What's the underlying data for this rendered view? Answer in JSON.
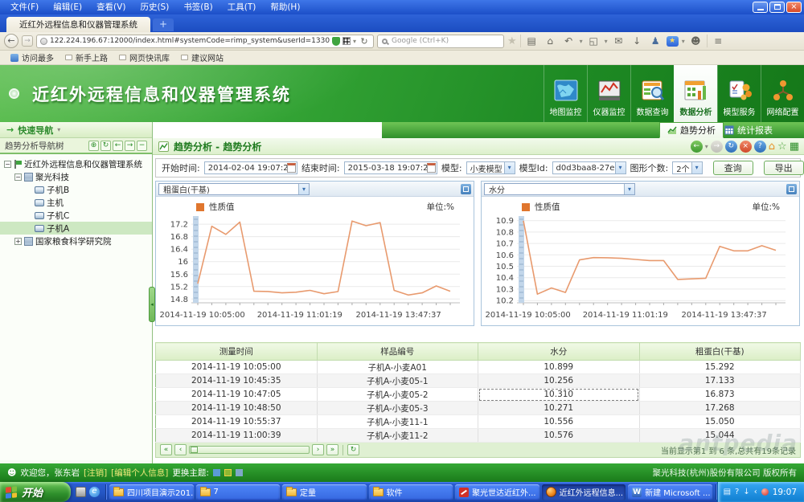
{
  "window": {
    "menus": [
      "文件(F)",
      "编辑(E)",
      "查看(V)",
      "历史(S)",
      "书签(B)",
      "工具(T)",
      "帮助(H)"
    ],
    "tab_title": "近红外远程信息和仪器管理系统",
    "new_tab_label": "+",
    "url": "122.224.196.67:12000/index.html#systemCode=rimp_system&userId=1330fed0c8b84f569a5a102caea73af0#",
    "search_placeholder": "Google (Ctrl+K)",
    "bookmarks": [
      "访问最多",
      "新手上路",
      "网页快讯库",
      "建议网站"
    ]
  },
  "header": {
    "title": "近红外远程信息和仪器管理系统",
    "modules": [
      {
        "label": "地图监控",
        "icon": "map",
        "active": false
      },
      {
        "label": "仪器监控",
        "icon": "instrument",
        "active": false
      },
      {
        "label": "数据查询",
        "icon": "query",
        "active": false
      },
      {
        "label": "数据分析",
        "icon": "analysis",
        "active": true
      },
      {
        "label": "模型服务",
        "icon": "model",
        "active": false
      },
      {
        "label": "网络配置",
        "icon": "network",
        "active": false
      }
    ],
    "subtabs": [
      {
        "label": "趋势分析",
        "active": true
      },
      {
        "label": "统计报表",
        "active": false
      }
    ]
  },
  "sidebar": {
    "quick_nav_label": "快速导航",
    "panel_title": "趋势分析导航树",
    "tree": [
      {
        "label": "近红外远程信息和仪器管理系统",
        "level": 0,
        "icon": "flag",
        "expander": "minus",
        "selected": false
      },
      {
        "label": "聚光科技",
        "level": 1,
        "icon": "org",
        "expander": "minus",
        "selected": false
      },
      {
        "label": "子机B",
        "level": 2,
        "icon": "device",
        "expander": "",
        "selected": false
      },
      {
        "label": "主机",
        "level": 2,
        "icon": "device",
        "expander": "",
        "selected": false
      },
      {
        "label": "子机C",
        "level": 2,
        "icon": "device",
        "expander": "",
        "selected": false
      },
      {
        "label": "子机A",
        "level": 2,
        "icon": "device",
        "expander": "",
        "selected": true
      },
      {
        "label": "国家粮食科学研究院",
        "level": 1,
        "icon": "org",
        "expander": "plus",
        "selected": false
      }
    ]
  },
  "main": {
    "breadcrumb": "趋势分析 - 趋势分析",
    "form": {
      "start_label": "开始时间:",
      "start_value": "2014-02-04 19:07:21",
      "end_label": "结束时间:",
      "end_value": "2015-03-18 19:07:21",
      "model_label": "模型:",
      "model_value": "小麦模型",
      "model_id_label": "模型Id:",
      "model_id_value": "d0d3baa8-27e",
      "count_label": "图形个数:",
      "count_value": "2个",
      "query_label": "查询",
      "export_label": "导出"
    },
    "pagination_info": "当前显示第1 到 6 条,总共有19条记录",
    "watermark": "antpedia"
  },
  "chart_data": [
    {
      "type": "line",
      "title": "粗蛋白(干基)",
      "legend": "性质值",
      "unit_label": "单位:%",
      "series_color": "#E89A6E",
      "x_tick_labels": [
        "2014-11-19 10:05:00",
        "2014-11-19 11:01:19",
        "2014-11-19 13:47:37"
      ],
      "y_ticks": [
        14.8,
        15.2,
        15.6,
        16,
        16.4,
        16.8,
        17.2
      ],
      "ylim": [
        14.68,
        17.46
      ],
      "values": [
        15.292,
        17.133,
        16.873,
        17.268,
        15.05,
        15.044,
        15.0,
        15.02,
        15.08,
        14.97,
        15.04,
        17.3,
        17.15,
        17.25,
        15.08,
        14.93,
        15.0,
        15.22,
        15.05
      ]
    },
    {
      "type": "line",
      "title": "水分",
      "legend": "性质值",
      "unit_label": "单位:%",
      "series_color": "#E89A6E",
      "x_tick_labels": [
        "2014-11-19 10:05:00",
        "2014-11-19 11:01:19",
        "2014-11-19 13:47:37"
      ],
      "y_ticks": [
        10.2,
        10.3,
        10.4,
        10.5,
        10.6,
        10.7,
        10.8,
        10.9
      ],
      "ylim": [
        10.18,
        10.94
      ],
      "values": [
        10.899,
        10.256,
        10.31,
        10.271,
        10.556,
        10.576,
        10.575,
        10.57,
        10.56,
        10.55,
        10.55,
        10.385,
        10.39,
        10.395,
        10.675,
        10.635,
        10.635,
        10.68,
        10.64
      ]
    }
  ],
  "table": {
    "headers": [
      "测量时间",
      "样品编号",
      "水分",
      "粗蛋白(干基)"
    ],
    "rows": [
      [
        "2014-11-19 10:05:00",
        "子机A-小麦A01",
        "10.899",
        "15.292"
      ],
      [
        "2014-11-19 10:45:35",
        "子机A-小麦05-1",
        "10.256",
        "17.133"
      ],
      [
        "2014-11-19 10:47:05",
        "子机A-小麦05-2",
        "10.310",
        "16.873"
      ],
      [
        "2014-11-19 10:48:50",
        "子机A-小麦05-3",
        "10.271",
        "17.268"
      ],
      [
        "2014-11-19 10:55:37",
        "子机A-小麦11-1",
        "10.556",
        "15.050"
      ],
      [
        "2014-11-19 11:00:39",
        "子机A-小麦11-2",
        "10.576",
        "15.044"
      ]
    ],
    "focused_cell": [
      2,
      2
    ]
  },
  "statusbar": {
    "welcome": "欢迎您，张东岩",
    "logout_link": "[注销]",
    "edit_link": "[编辑个人信息]",
    "theme_label": "更换主题:",
    "copyright": "聚光科技(杭州)股份有限公司 版权所有"
  },
  "taskbar": {
    "start_label": "开始",
    "buttons": [
      {
        "label": "四川项目演示201...",
        "icon": "folder",
        "active": false
      },
      {
        "label": "7",
        "icon": "folder",
        "active": false
      },
      {
        "label": "定量",
        "icon": "folder",
        "active": false
      },
      {
        "label": "软件",
        "icon": "folder",
        "active": false
      },
      {
        "label": "聚光世达近红外...",
        "icon": "app-red",
        "active": false
      },
      {
        "label": "近红外远程信息...",
        "icon": "firefox",
        "active": true
      },
      {
        "label": "新建 Microsoft ...",
        "icon": "word",
        "active": false
      }
    ],
    "clock": "19:07"
  },
  "icons": {
    "back": "←",
    "forward": "→",
    "caret": "▾",
    "reload": "↻",
    "refresh": "↻",
    "clipboard": "▤",
    "home": "⌂",
    "undo": "↶",
    "crop": "◱",
    "chat": "✉",
    "download": "↓",
    "person": "♟",
    "star": "★",
    "star_outline": "☆",
    "menu": "≡",
    "close": "×",
    "help": "?",
    "grid": "▦",
    "first": "«",
    "prev": "‹",
    "next": "›",
    "last": "»",
    "zoom": "⊕",
    "minus": "−",
    "plus": "+",
    "left": "←",
    "right": "→",
    "quick_arrow": "→",
    "smiley": "☻",
    "word_w": "W",
    "ie_e": "e",
    "handle_arrow": "◂"
  },
  "colors": {
    "brand_green": "#2E9B2F",
    "header_green_dark": "#1A7E1E",
    "line_orange": "#E89A6E",
    "xp_blue": "#2456C4",
    "selection_green": "#CDE8C2"
  }
}
